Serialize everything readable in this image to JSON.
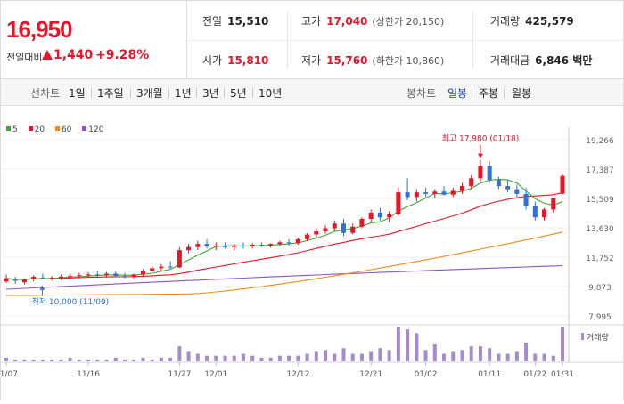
{
  "summary": {
    "price": "16,950",
    "change_label": "전일대비",
    "change_value": "1,440",
    "change_pct": "+9.28%"
  },
  "info": {
    "prev_label": "전일",
    "prev_value": "15,510",
    "high_label": "고가",
    "high_value": "17,040",
    "upper_limit": "(상한가 20,150)",
    "volume_label": "거래량",
    "volume_value": "425,579",
    "open_label": "시가",
    "open_value": "15,810",
    "low_label": "저가",
    "low_value": "15,760",
    "lower_limit": "(하한가 10,860)",
    "amount_label": "거래대금",
    "amount_value": "6,846 백만"
  },
  "toolbar": {
    "line_label": "선차트",
    "periods": [
      "1일",
      "1주일",
      "3개월",
      "1년",
      "3년",
      "5년",
      "10년"
    ],
    "candle_label": "봉차트",
    "candle_periods": [
      "일봉",
      "주봉",
      "월봉"
    ],
    "active_candle": "일봉"
  },
  "legend": [
    {
      "name": "5",
      "color": "#3aa935"
    },
    {
      "name": "20",
      "color": "#e5152a"
    },
    {
      "name": "60",
      "color": "#f28a1c"
    },
    {
      "name": "120",
      "color": "#8a54c2"
    }
  ],
  "chart_data": {
    "type": "candlestick",
    "y_ticks": [
      "19,266",
      "17,387",
      "15,509",
      "13,630",
      "11,752",
      "9,873",
      "7,995"
    ],
    "ylim": [
      7995,
      19266
    ],
    "x_ticks": [
      "11/07",
      "11/16",
      "11/27",
      "12/01",
      "12/12",
      "12/21",
      "01/02",
      "01/11",
      "01/22",
      "01/31"
    ],
    "annotations": {
      "high": "최고 17,980 (01/18)",
      "low": "최저 10,000 (11/09)"
    },
    "volume_label": "거래량",
    "candles": [
      [
        10200,
        10650,
        10100,
        10400
      ],
      [
        10300,
        10500,
        10050,
        10250
      ],
      [
        10150,
        10400,
        10000,
        10350
      ],
      [
        10350,
        10600,
        10200,
        10500
      ],
      [
        10450,
        10700,
        10350,
        10400
      ],
      [
        10400,
        10550,
        10250,
        10450
      ],
      [
        10450,
        10650,
        10300,
        10500
      ],
      [
        10500,
        10700,
        10400,
        10550
      ],
      [
        10550,
        10750,
        10400,
        10600
      ],
      [
        10600,
        10800,
        10450,
        10650
      ],
      [
        10650,
        10900,
        10500,
        10600
      ],
      [
        10600,
        10800,
        10450,
        10700
      ],
      [
        10700,
        10850,
        10500,
        10550
      ],
      [
        10550,
        10750,
        10400,
        10500
      ],
      [
        10500,
        10700,
        10400,
        10650
      ],
      [
        10650,
        11000,
        10550,
        10900
      ],
      [
        10900,
        11200,
        10800,
        11050
      ],
      [
        11050,
        11300,
        10900,
        11150
      ],
      [
        11150,
        11500,
        11000,
        11100
      ],
      [
        11100,
        12400,
        11050,
        12200
      ],
      [
        12200,
        12600,
        12000,
        12400
      ],
      [
        12400,
        12800,
        12200,
        12600
      ],
      [
        12600,
        12900,
        12300,
        12450
      ],
      [
        12450,
        12700,
        12200,
        12500
      ],
      [
        12500,
        12700,
        12300,
        12400
      ],
      [
        12400,
        12600,
        12200,
        12500
      ],
      [
        12500,
        12700,
        12300,
        12450
      ],
      [
        12450,
        12650,
        12300,
        12550
      ],
      [
        12550,
        12700,
        12400,
        12500
      ],
      [
        12500,
        12650,
        12350,
        12600
      ],
      [
        12600,
        12800,
        12450,
        12700
      ],
      [
        12700,
        12900,
        12500,
        12650
      ],
      [
        12650,
        13000,
        12550,
        12900
      ],
      [
        12900,
        13300,
        12800,
        13200
      ],
      [
        13200,
        13600,
        13000,
        13400
      ],
      [
        13400,
        13800,
        13250,
        13600
      ],
      [
        13600,
        14100,
        13400,
        13900
      ],
      [
        13900,
        14200,
        13100,
        13300
      ],
      [
        13300,
        13900,
        13200,
        13700
      ],
      [
        13700,
        14300,
        13600,
        14200
      ],
      [
        14200,
        14800,
        14000,
        14600
      ],
      [
        14600,
        14900,
        14100,
        14300
      ],
      [
        14300,
        14700,
        14000,
        14500
      ],
      [
        14500,
        16200,
        14400,
        15900
      ],
      [
        15900,
        16800,
        15400,
        15600
      ],
      [
        15600,
        16100,
        15300,
        15900
      ],
      [
        15900,
        16200,
        15600,
        15800
      ],
      [
        15800,
        16100,
        15500,
        15950
      ],
      [
        15950,
        16300,
        15700,
        15750
      ],
      [
        15750,
        16200,
        15600,
        16000
      ],
      [
        16000,
        16500,
        15800,
        16300
      ],
      [
        16300,
        17000,
        16100,
        16800
      ],
      [
        16800,
        17980,
        16600,
        17600
      ],
      [
        17600,
        17900,
        16500,
        16700
      ],
      [
        16700,
        16900,
        16100,
        16300
      ],
      [
        16300,
        16700,
        15900,
        16100
      ],
      [
        16100,
        16400,
        15600,
        15800
      ],
      [
        15800,
        16200,
        14800,
        15000
      ],
      [
        15000,
        15300,
        14100,
        14300
      ],
      [
        14300,
        14900,
        14100,
        14800
      ],
      [
        14800,
        15500,
        14600,
        15510
      ],
      [
        15810,
        17040,
        15760,
        16950
      ]
    ],
    "volumes": [
      2,
      1,
      1,
      1,
      1,
      1,
      1,
      2,
      1,
      1,
      1,
      1,
      2,
      1,
      1,
      2,
      1,
      2,
      2,
      8,
      5,
      4,
      3,
      3,
      3,
      3,
      4,
      3,
      2,
      2,
      3,
      3,
      3,
      4,
      5,
      6,
      4,
      7,
      4,
      4,
      5,
      7,
      6,
      18,
      17,
      15,
      6,
      9,
      4,
      5,
      6,
      8,
      8,
      7,
      4,
      4,
      5,
      10,
      4,
      4,
      3,
      18
    ]
  }
}
